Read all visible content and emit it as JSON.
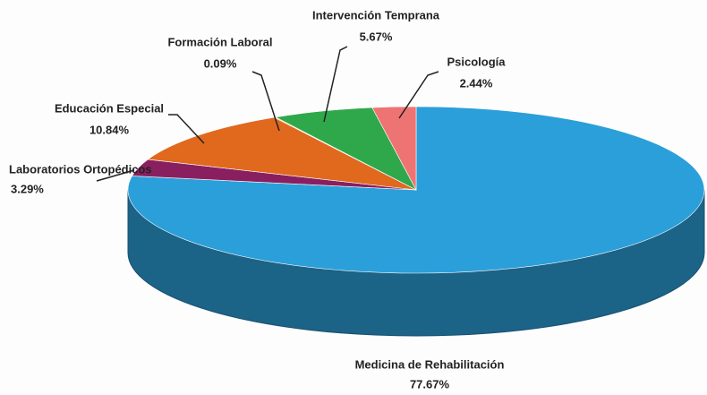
{
  "chart_data": {
    "type": "pie",
    "categories": [
      "Medicina de Rehabilitación",
      "Laboratorios Ortopédicos",
      "Educación Especial",
      "Formación Laboral",
      "Intervención Temprana",
      "Psicología"
    ],
    "values": [
      77.67,
      3.29,
      10.84,
      0.09,
      5.67,
      2.44
    ],
    "value_labels": [
      "77.67%",
      "3.29%",
      "10.84%",
      "0.09%",
      "5.67%",
      "2.44%"
    ],
    "colors": [
      "#2b9fd9",
      "#8a1f5f",
      "#e0691e",
      "#e8c21e",
      "#2fa84b",
      "#ee7474"
    ]
  }
}
